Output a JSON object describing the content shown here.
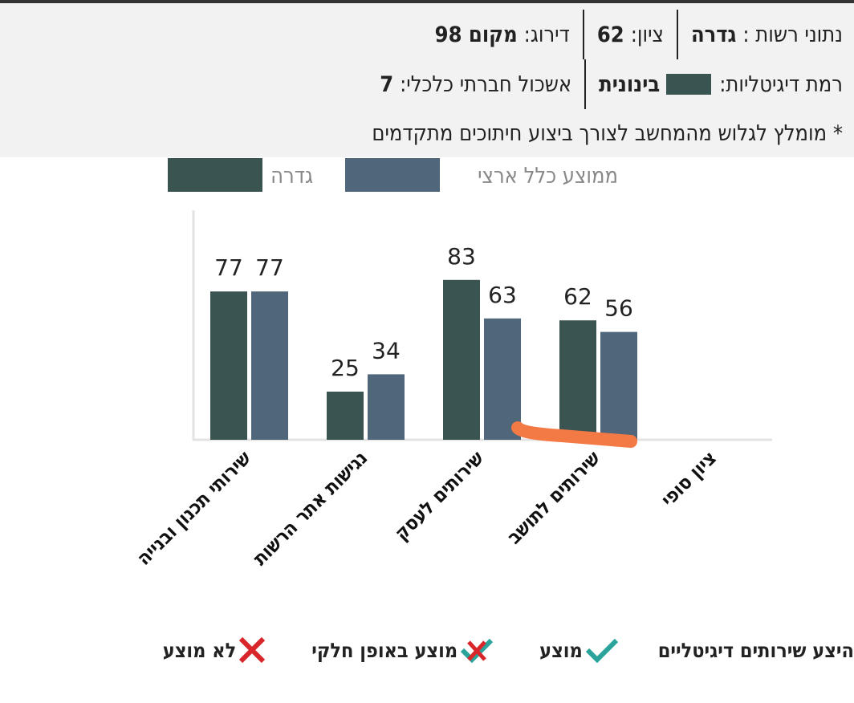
{
  "header": {
    "authority_label": "נתוני רשות :",
    "authority_name": "גדרה",
    "score_label": "ציון:",
    "score_value": "62",
    "rank_label": "דירוג:",
    "rank_value": "מקום 98",
    "digital_level_label": "רמת דיגיטליות:",
    "digital_level_value": "בינונית",
    "cluster_label": "אשכול חברתי כלכלי:",
    "cluster_value": "7",
    "note": "* מומלץ לגלוש מהמחשב לצורך ביצוע חיתוכים מתקדמים"
  },
  "colors": {
    "authority": "#3a5452",
    "national": "#50667a",
    "annotation": "#f47a45",
    "check": "#2aa39a",
    "cross": "#d8262b"
  },
  "chart_data": {
    "type": "bar",
    "categories": [
      "שירותי תכנון ובנייה",
      "נגישות אתר הרשות",
      "שירותים לעסק",
      "שירותים לתושב",
      "ציון סופי"
    ],
    "series": [
      {
        "name": "גדרה",
        "values": [
          77,
          25,
          83,
          62,
          null
        ]
      },
      {
        "name": "ממוצע כלל ארצי",
        "values": [
          77,
          34,
          63,
          56,
          null
        ]
      }
    ],
    "ylim": [
      0,
      100
    ],
    "legend_position": "top",
    "grid": false
  },
  "footer": {
    "title": "היצע שירותים דיגיטליים",
    "items": [
      {
        "label": "מוצע",
        "icon": "check-icon"
      },
      {
        "label": "מוצע באופן חלקי",
        "icon": "partial-check-icon"
      },
      {
        "label": "לא מוצע",
        "icon": "cross-icon"
      }
    ]
  }
}
